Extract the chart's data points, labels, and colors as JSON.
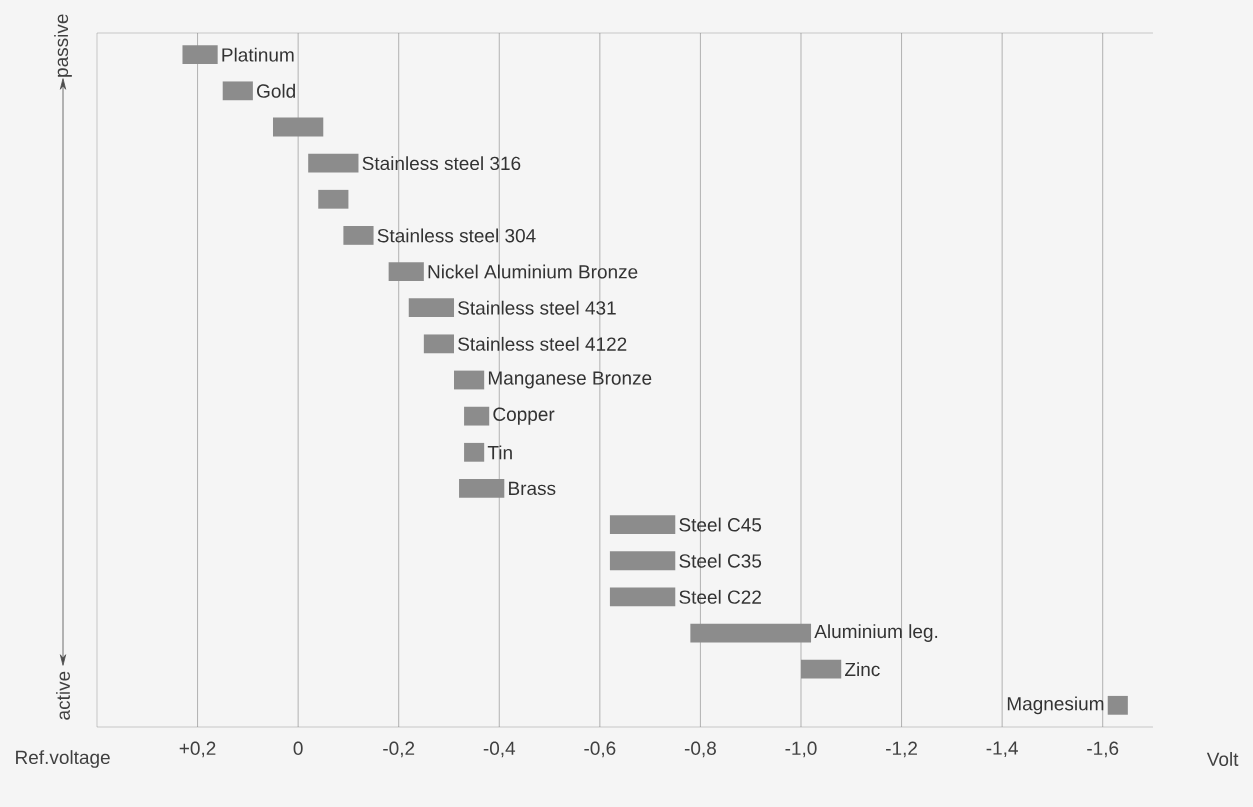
{
  "chart_data": {
    "type": "bar",
    "orientation": "horizontal",
    "xlabel": "Volt",
    "annotations": [
      "Ref.voltage",
      "passive",
      "active"
    ],
    "categories": [
      "Platinum",
      "Gold",
      null,
      "Stainless steel 316",
      null,
      "Stainless steel 304",
      "Nickel Aluminium Bronze",
      "Stainless steel 431",
      "Stainless steel 4122",
      "Manganese Bronze",
      "Copper",
      "Tin",
      "Brass",
      "Steel C45",
      "Steel C35",
      "Steel C22",
      "Aluminium leg.",
      "Zinc",
      "Magnesium"
    ],
    "base": [
      0.23,
      0.15,
      0.05,
      -0.02,
      -0.04,
      -0.09,
      -0.18,
      -0.22,
      -0.25,
      -0.31,
      -0.33,
      -0.33,
      -0.32,
      -0.62,
      -0.62,
      -0.62,
      -0.78,
      -1.0,
      -1.61
    ],
    "values": [
      -0.07,
      -0.06,
      -0.1,
      -0.1,
      -0.06,
      -0.06,
      -0.07,
      -0.09,
      -0.06,
      -0.06,
      -0.05,
      -0.04,
      -0.09,
      -0.13,
      -0.13,
      -0.13,
      -0.24,
      -0.08,
      -0.04
    ],
    "color": "#8c8c8c",
    "xlim": [
      0.4,
      -1.7
    ],
    "xticks": [
      {
        "value": 0.2,
        "label": "+0,2"
      },
      {
        "value": 0,
        "label": "0"
      },
      {
        "value": -0.2,
        "label": "-0,2"
      },
      {
        "value": -0.4,
        "label": "-0,4"
      },
      {
        "value": -0.6,
        "label": "-0,6"
      },
      {
        "value": -0.8,
        "label": "-0,8"
      },
      {
        "value": -1.0,
        "label": "-1,0"
      },
      {
        "value": -1.2,
        "label": "-1,2"
      },
      {
        "value": -1.4,
        "label": "-1,4"
      },
      {
        "value": -1.6,
        "label": "-1,6"
      }
    ],
    "grid": "x"
  }
}
